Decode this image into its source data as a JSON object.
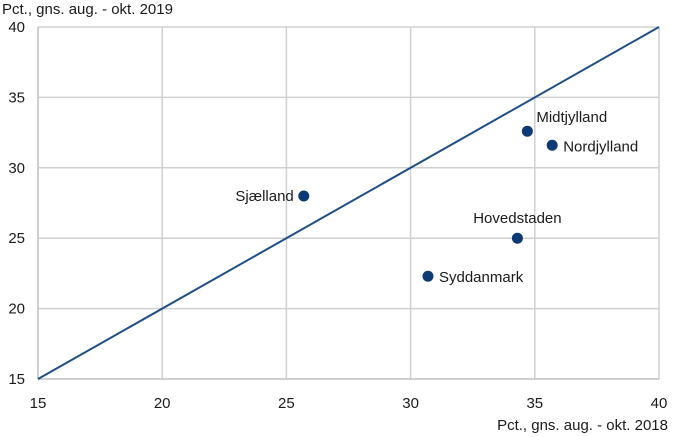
{
  "chart_data": {
    "type": "scatter",
    "title": "",
    "ylabel": "Pct., gns. aug. - okt. 2019",
    "xlabel": "Pct., gns. aug. - okt. 2018",
    "xlim": [
      15,
      40
    ],
    "ylim": [
      15,
      40
    ],
    "xticks": [
      15,
      20,
      25,
      30,
      35,
      40
    ],
    "yticks": [
      15,
      20,
      25,
      30,
      35,
      40
    ],
    "grid": true,
    "reference_line": {
      "from": [
        15,
        15
      ],
      "to": [
        40,
        40
      ]
    },
    "points": [
      {
        "label": "Midtjylland",
        "x": 34.7,
        "y": 32.6,
        "label_anchor": "start",
        "label_pos": "above-right"
      },
      {
        "label": "Nordjylland",
        "x": 35.7,
        "y": 31.6,
        "label_anchor": "start",
        "label_pos": "right"
      },
      {
        "label": "Sjælland",
        "x": 25.7,
        "y": 28.0,
        "label_anchor": "end",
        "label_pos": "left"
      },
      {
        "label": "Hovedstaden",
        "x": 34.3,
        "y": 25.0,
        "label_anchor": "middle",
        "label_pos": "above"
      },
      {
        "label": "Syddanmark",
        "x": 30.7,
        "y": 22.3,
        "label_anchor": "start",
        "label_pos": "right"
      }
    ],
    "colors": {
      "series": "#0b3a75",
      "line": "#1f4e86",
      "grid": "#d0d0d0"
    }
  }
}
